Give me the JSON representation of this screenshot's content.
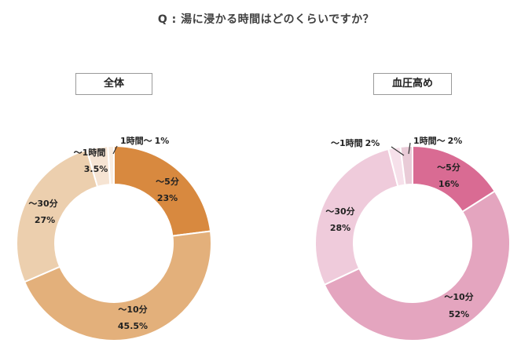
{
  "title": "Q : 湯に浸かる時間はどのくらいですか？",
  "chart_data": [
    {
      "type": "pie",
      "title": "全体",
      "categories": [
        "～5分",
        "～10分",
        "～30分",
        "～1時間",
        "1時間～"
      ],
      "values": [
        23,
        45.5,
        27,
        3.5,
        1
      ],
      "labels": [
        {
          "name": "～5分",
          "value": "23%"
        },
        {
          "name": "～10分",
          "value": "45.5%"
        },
        {
          "name": "～30分",
          "value": "27%"
        },
        {
          "name": "～1時間",
          "value": "3.5%"
        },
        {
          "name": "1時間～",
          "value": "1%"
        }
      ],
      "colors": [
        "#d8893f",
        "#e3b07b",
        "#eccfae",
        "#f6e4d3",
        "#f9ede2"
      ]
    },
    {
      "type": "pie",
      "title": "血圧高め",
      "categories": [
        "～5分",
        "～10分",
        "～30分",
        "～1時間",
        "1時間～"
      ],
      "values": [
        16,
        52,
        28,
        2,
        2
      ],
      "labels": [
        {
          "name": "～5分",
          "value": "16%"
        },
        {
          "name": "～10分",
          "value": "52%"
        },
        {
          "name": "～30分",
          "value": "28%"
        },
        {
          "name": "～1時間",
          "value": "2%"
        },
        {
          "name": "1時間～",
          "value": "2%"
        }
      ],
      "colors": [
        "#d96b93",
        "#e4a5bf",
        "#efcbdb",
        "#f6e0ea",
        "#e9cbd7"
      ]
    }
  ]
}
